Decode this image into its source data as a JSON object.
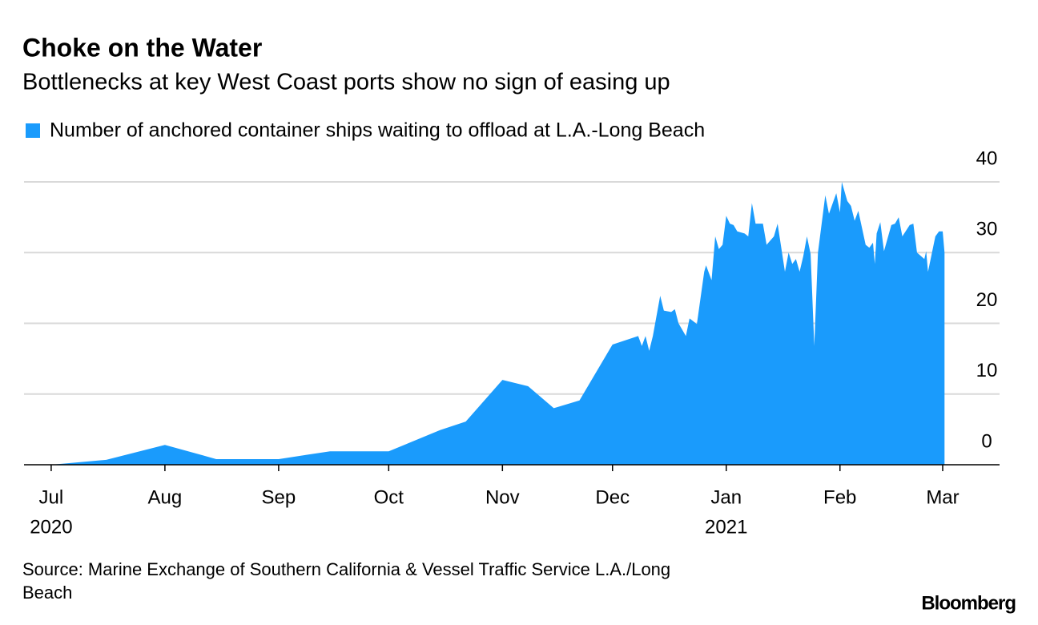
{
  "chart_data": {
    "type": "area",
    "title": "Choke on the Water",
    "subtitle": "Bottlenecks at key West Coast ports show no sign of easing up",
    "source": "Source: Marine Exchange of Southern California & Vessel Traffic Service L.A./Long Beach",
    "brand": "Bloomberg",
    "color": "#1a9bfc",
    "series": [
      {
        "name": "Number of anchored container ships waiting to offload at L.A.-Long Beach",
        "color": "#1a9bfc",
        "values": [
          0,
          0.7,
          2.8,
          0.8,
          0.8,
          1.9,
          1.9,
          4.9,
          6.1,
          12,
          11.1,
          8,
          9.1,
          17,
          18.2,
          16.8,
          18.2,
          16.1,
          18.2,
          23.9,
          21.8,
          21.6,
          22,
          20,
          18.2,
          20.7,
          19.9,
          27.3,
          28.2,
          26.1,
          32.3,
          30.5,
          31.1,
          35.2,
          34.1,
          33.9,
          33,
          32.7,
          32.3,
          37,
          34.1,
          34.1,
          31.1,
          32.3,
          34.1,
          27.3,
          30,
          28.4,
          29.1,
          27.3,
          29.5,
          32.3,
          29.8,
          16.8,
          30,
          38.1,
          35.5,
          38.4,
          35.7,
          40,
          37.3,
          36.6,
          34.5,
          35.9,
          31.1,
          30.7,
          31.4,
          28.4,
          32.7,
          34.3,
          30.2,
          33.9,
          34.1,
          35,
          32.3,
          33.9,
          34.1,
          30,
          29.1,
          30.2,
          27.3,
          32.3,
          33,
          33,
          30
        ]
      }
    ],
    "x": [
      0,
      15,
      31,
      45,
      62,
      76,
      92,
      106,
      113,
      123,
      130,
      137,
      144,
      153,
      160,
      161,
      162,
      163,
      164,
      166,
      167,
      169,
      170,
      171,
      173,
      174,
      176,
      178,
      178.5,
      180,
      181,
      182,
      183,
      184,
      185,
      186,
      187,
      189,
      190,
      191,
      192,
      194,
      195,
      197,
      198,
      200,
      201,
      202,
      203,
      204,
      205,
      206,
      207,
      208,
      209,
      211,
      212,
      214,
      215,
      215.5,
      217,
      218,
      219,
      220,
      222,
      223,
      224,
      224.5,
      225,
      226,
      227,
      229,
      230,
      231,
      232,
      234,
      235,
      236,
      238,
      238.5,
      239,
      241,
      242,
      243,
      243.5
    ],
    "xlim": [
      -7.4,
      258.5
    ],
    "xticks": [
      {
        "value": 0,
        "label": "Jul"
      },
      {
        "value": 31,
        "label": "Aug"
      },
      {
        "value": 62,
        "label": "Sep"
      },
      {
        "value": 92,
        "label": "Oct"
      },
      {
        "value": 123,
        "label": "Nov"
      },
      {
        "value": 153,
        "label": "Dec"
      },
      {
        "value": 184,
        "label": "Jan"
      },
      {
        "value": 215,
        "label": "Feb"
      },
      {
        "value": 243,
        "label": "Mar"
      }
    ],
    "year_labels": [
      {
        "value": 0,
        "label": "2020"
      },
      {
        "value": 184,
        "label": "2021"
      }
    ],
    "ylim": [
      0,
      40
    ],
    "yticks": [
      0,
      10,
      20,
      30,
      40
    ],
    "grid": true
  }
}
